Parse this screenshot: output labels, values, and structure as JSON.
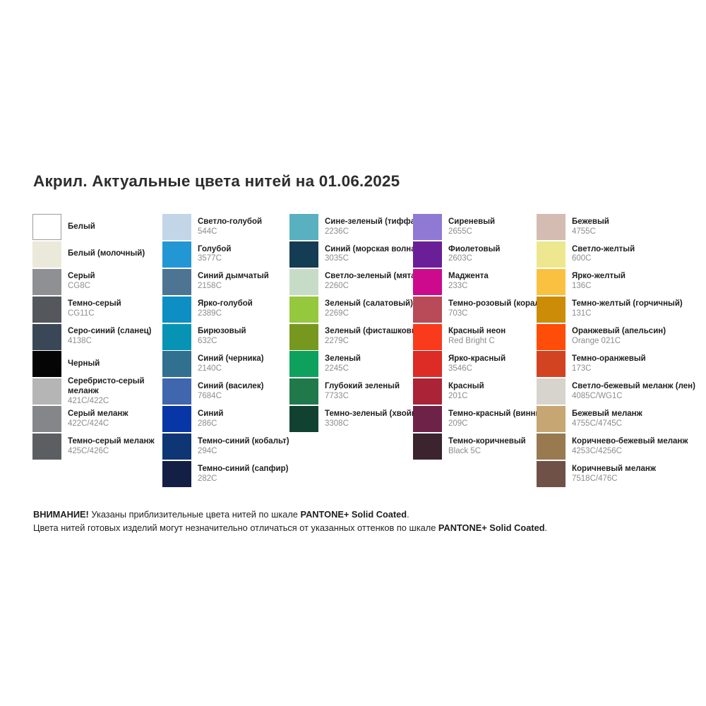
{
  "title": "Акрил. Актуальные цвета нитей на 01.06.2025",
  "palette": {
    "columns": [
      {
        "items": [
          {
            "name": "Белый",
            "code": "",
            "color": "#ffffff",
            "border": true
          },
          {
            "name": "Белый (молочный)",
            "code": "",
            "color": "#ebe9da"
          },
          {
            "name": "Серый",
            "code": "CG8C",
            "color": "#8e9093"
          },
          {
            "name": "Темно-серый",
            "code": "CG11C",
            "color": "#54575b"
          },
          {
            "name": "Серо-синий (сланец)",
            "code": "4138C",
            "color": "#394756"
          },
          {
            "name": "Черный",
            "code": "",
            "color": "#050505"
          },
          {
            "name": "Серебристо-серый",
            "name2": "меланж",
            "code": "421C/422C",
            "color": "#b4b5b4"
          },
          {
            "name": "Серый меланж",
            "code": "422C/424C",
            "color": "#84868a"
          },
          {
            "name": "Темно-серый меланж",
            "code": "425C/426C",
            "color": "#5b5f62"
          }
        ]
      },
      {
        "items": [
          {
            "name": "Светло-голубой",
            "code": "544C",
            "color": "#c2d6e8"
          },
          {
            "name": "Голубой",
            "code": "3577C",
            "color": "#2397d4"
          },
          {
            "name": "Синий дымчатый",
            "code": "2158C",
            "color": "#4e7494"
          },
          {
            "name": "Ярко-голубой",
            "code": "2389C",
            "color": "#0d8fc3"
          },
          {
            "name": "Бирюзовый",
            "code": "632C",
            "color": "#0794b4"
          },
          {
            "name": "Синий (черника)",
            "code": "2140C",
            "color": "#31708f"
          },
          {
            "name": "Синий (василек)",
            "code": "7684C",
            "color": "#4066ad"
          },
          {
            "name": "Синий",
            "code": "286C",
            "color": "#0736a6"
          },
          {
            "name": "Темно-синий (кобальт)",
            "code": "294C",
            "color": "#0e3674"
          },
          {
            "name": "Темно-синий (сапфир)",
            "code": "282C",
            "color": "#141f45"
          }
        ]
      },
      {
        "items": [
          {
            "name": "Сине-зеленый (тиффани)",
            "code": "2236C",
            "color": "#59b0bf"
          },
          {
            "name": "Синий (морская волна)",
            "code": "3035C",
            "color": "#133d52"
          },
          {
            "name": "Светло-зеленый (мята)",
            "code": "2260C",
            "color": "#c7dcc7"
          },
          {
            "name": "Зеленый (салатовый)",
            "code": "2269C",
            "color": "#94c83d"
          },
          {
            "name": "Зеленый (фисташковый)",
            "code": "2279C",
            "color": "#76981f"
          },
          {
            "name": "Зеленый",
            "code": "2245C",
            "color": "#0ea15e"
          },
          {
            "name": "Глубокий зеленый",
            "code": "7733C",
            "color": "#20794b"
          },
          {
            "name": "Темно-зеленый (хвойный)",
            "code": "3308C",
            "color": "#114231"
          }
        ]
      },
      {
        "items": [
          {
            "name": "Сиреневый",
            "code": "2655C",
            "color": "#9078d5"
          },
          {
            "name": "Фиолетовый",
            "code": "2603C",
            "color": "#6a1f99"
          },
          {
            "name": "Маджента",
            "code": "233C",
            "color": "#cd0a8e"
          },
          {
            "name": "Темно-розовый (коралл)",
            "code": "703C",
            "color": "#b94a57"
          },
          {
            "name": "Красный неон",
            "code": "Red Bright C",
            "color": "#fa3a1d"
          },
          {
            "name": "Ярко-красный",
            "code": "3546C",
            "color": "#dc2c25"
          },
          {
            "name": "Красный",
            "code": "201C",
            "color": "#aa2336"
          },
          {
            "name": "Темно-красный (винный)",
            "code": "209C",
            "color": "#6f2248"
          },
          {
            "name": "Темно-коричневый",
            "code": "Black 5C",
            "color": "#3b242e"
          }
        ]
      },
      {
        "items": [
          {
            "name": "Бежевый",
            "code": "4755C",
            "color": "#d4bcb3"
          },
          {
            "name": "Светло-желтый",
            "code": "600C",
            "color": "#ede78f"
          },
          {
            "name": "Ярко-желтый",
            "code": "136C",
            "color": "#fac141"
          },
          {
            "name": "Темно-желтый (горчичный)",
            "code": "131C",
            "color": "#cd8c08"
          },
          {
            "name": "Оранжевый (апельсин)",
            "code": "Orange 021C",
            "color": "#fd4d08"
          },
          {
            "name": "Темно-оранжевый",
            "code": "173C",
            "color": "#d24321"
          },
          {
            "name": "Светло-бежевый меланж (лен)",
            "code": "4085C/WG1C",
            "color": "#d7d4cd"
          },
          {
            "name": "Бежевый меланж",
            "code": "4755C/4745C",
            "color": "#c6a672"
          },
          {
            "name": "Коричнево-бежевый меланж",
            "code": "4253C/4256C",
            "color": "#987950"
          },
          {
            "name": "Коричневый меланж",
            "code": "7518C/476C",
            "color": "#6f5147"
          }
        ]
      }
    ]
  },
  "footer": {
    "lines": [
      {
        "segments": [
          {
            "text": "ВНИМАНИЕ!",
            "bold": true
          },
          {
            "text": " Указаны приблизительные цвета нитей по шкале ",
            "bold": false
          },
          {
            "text": "PANTONE+ Solid Coated",
            "bold": true
          },
          {
            "text": ".",
            "bold": false
          }
        ]
      },
      {
        "segments": [
          {
            "text": "Цвета нитей готовых изделий могут незначительно отличаться от указанных оттенков по шкале ",
            "bold": false
          },
          {
            "text": "PANTONE+ Solid Coated",
            "bold": true
          },
          {
            "text": ".",
            "bold": false
          }
        ]
      }
    ]
  }
}
